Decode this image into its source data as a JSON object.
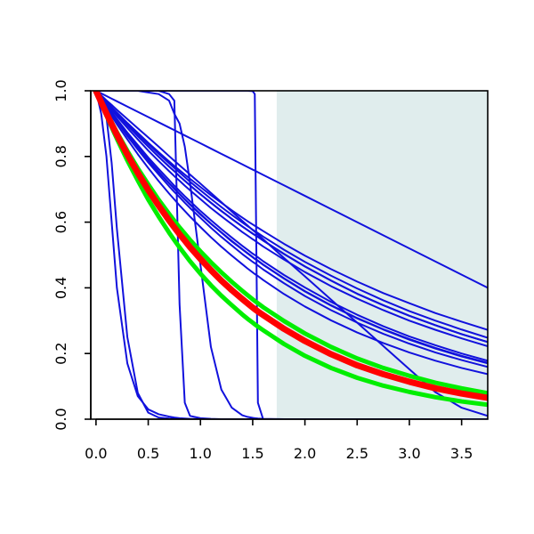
{
  "chart_data": {
    "type": "line",
    "title": "",
    "xlabel": "",
    "ylabel": "",
    "xlim": [
      -0.05,
      3.75
    ],
    "ylim": [
      0.0,
      1.0
    ],
    "x_ticks": [
      0.0,
      0.5,
      1.0,
      1.5,
      2.0,
      2.5,
      3.0,
      3.5
    ],
    "x_tick_labels": [
      "0.0",
      "0.5",
      "1.0",
      "1.5",
      "2.0",
      "2.5",
      "3.0",
      "3.5"
    ],
    "y_ticks": [
      0.0,
      0.2,
      0.4,
      0.6,
      0.8,
      1.0
    ],
    "y_tick_labels": [
      "0.0",
      "0.2",
      "0.4",
      "0.6",
      "0.8",
      "1.0"
    ],
    "grid": false,
    "legend": "none",
    "shaded_region": {
      "x_from": 1.73,
      "x_to": 3.75,
      "color": "#e0eded"
    },
    "x_samples": [
      0.0,
      0.05,
      0.1,
      0.15,
      0.2,
      0.3,
      0.4,
      0.5,
      0.6,
      0.7,
      0.75,
      0.8,
      0.85,
      0.9,
      1.0,
      1.1,
      1.2,
      1.3,
      1.4,
      1.45,
      1.5,
      1.52,
      1.55,
      1.6,
      1.8,
      2.0,
      2.25,
      2.5,
      2.75,
      3.0,
      3.25,
      3.5,
      3.75
    ],
    "colors": {
      "blue": "#1111dd",
      "red": "#ff0000",
      "green": "#00ee00",
      "band": "#e0eded"
    },
    "series": [
      {
        "color": "blue",
        "width": 2,
        "values": [
          1.0,
          0.97,
          0.92,
          0.78,
          0.58,
          0.25,
          0.08,
          0.02,
          0.005,
          0.002,
          0.001,
          0.0,
          0.0,
          0.0,
          0.0,
          0.0,
          0.0,
          0.0,
          0.0,
          0.0,
          0.0,
          0.0,
          0.0,
          0.0,
          0.0,
          0.0,
          0.0,
          0.0,
          0.0,
          0.0,
          0.0,
          0.0,
          0.0
        ]
      },
      {
        "color": "blue",
        "width": 2,
        "values": [
          1.0,
          0.93,
          0.8,
          0.6,
          0.4,
          0.17,
          0.07,
          0.03,
          0.015,
          0.008,
          0.005,
          0.003,
          0.002,
          0.001,
          0.0,
          0.0,
          0.0,
          0.0,
          0.0,
          0.0,
          0.0,
          0.0,
          0.0,
          0.0,
          0.0,
          0.0,
          0.0,
          0.0,
          0.0,
          0.0,
          0.0,
          0.0,
          0.0
        ]
      },
      {
        "color": "blue",
        "width": 2,
        "values": [
          1.0,
          1.0,
          1.0,
          1.0,
          1.0,
          1.0,
          1.0,
          1.0,
          1.0,
          0.99,
          0.97,
          0.35,
          0.05,
          0.01,
          0.003,
          0.001,
          0.0,
          0.0,
          0.0,
          0.0,
          0.0,
          0.0,
          0.0,
          0.0,
          0.0,
          0.0,
          0.0,
          0.0,
          0.0,
          0.0,
          0.0,
          0.0,
          0.0
        ]
      },
      {
        "color": "blue",
        "width": 2,
        "values": [
          1.0,
          1.0,
          1.0,
          1.0,
          1.0,
          1.0,
          1.0,
          0.995,
          0.99,
          0.97,
          0.93,
          0.9,
          0.83,
          0.72,
          0.47,
          0.22,
          0.09,
          0.035,
          0.012,
          0.007,
          0.004,
          0.003,
          0.002,
          0.001,
          0.0,
          0.0,
          0.0,
          0.0,
          0.0,
          0.0,
          0.0,
          0.0,
          0.0
        ]
      },
      {
        "color": "blue",
        "width": 2,
        "values": [
          1.0,
          1.0,
          1.0,
          1.0,
          1.0,
          1.0,
          1.0,
          1.0,
          1.0,
          1.0,
          1.0,
          1.0,
          1.0,
          1.0,
          1.0,
          1.0,
          1.0,
          1.0,
          1.0,
          1.0,
          0.999,
          0.99,
          0.05,
          0.0,
          0.0,
          0.0,
          0.0,
          0.0,
          0.0,
          0.0,
          0.0,
          0.0,
          0.0
        ]
      },
      {
        "color": "blue",
        "width": 2,
        "values": [
          1.0,
          0.992,
          0.984,
          0.976,
          0.968,
          0.952,
          0.936,
          0.92,
          0.904,
          0.888,
          0.88,
          0.872,
          0.864,
          0.856,
          0.84,
          0.824,
          0.808,
          0.792,
          0.776,
          0.768,
          0.76,
          0.757,
          0.752,
          0.744,
          0.712,
          0.68,
          0.64,
          0.6,
          0.56,
          0.52,
          0.48,
          0.44,
          0.4
        ]
      },
      {
        "color": "blue",
        "width": 2,
        "values": [
          1.0,
          0.9815,
          0.9635,
          0.946,
          0.929,
          0.895,
          0.862,
          0.83,
          0.799,
          0.769,
          0.755,
          0.74,
          0.726,
          0.712,
          0.685,
          0.659,
          0.634,
          0.61,
          0.587,
          0.576,
          0.565,
          0.561,
          0.555,
          0.544,
          0.503,
          0.465,
          0.422,
          0.382,
          0.347,
          0.315,
          0.286,
          0.259,
          0.235
        ]
      },
      {
        "color": "blue",
        "width": 2,
        "values": [
          1.0,
          0.986,
          0.971,
          0.957,
          0.942,
          0.914,
          0.886,
          0.858,
          0.83,
          0.801,
          0.787,
          0.773,
          0.759,
          0.745,
          0.717,
          0.689,
          0.661,
          0.632,
          0.604,
          0.59,
          0.576,
          0.571,
          0.562,
          0.548,
          0.491,
          0.435,
          0.364,
          0.294,
          0.223,
          0.152,
          0.082,
          0.035,
          0.01
        ]
      },
      {
        "color": "blue",
        "width": 2,
        "values": [
          1.0,
          0.9825,
          0.9655,
          0.9485,
          0.932,
          0.9,
          0.869,
          0.838,
          0.808,
          0.779,
          0.765,
          0.751,
          0.737,
          0.723,
          0.697,
          0.671,
          0.646,
          0.622,
          0.599,
          0.588,
          0.577,
          0.573,
          0.567,
          0.556,
          0.516,
          0.479,
          0.437,
          0.398,
          0.362,
          0.329,
          0.3,
          0.273,
          0.248
        ]
      },
      {
        "color": "blue",
        "width": 2,
        "values": [
          1.0,
          0.983,
          0.966,
          0.95,
          0.934,
          0.902,
          0.872,
          0.842,
          0.813,
          0.785,
          0.771,
          0.758,
          0.745,
          0.732,
          0.707,
          0.682,
          0.659,
          0.636,
          0.614,
          0.603,
          0.593,
          0.589,
          0.583,
          0.573,
          0.534,
          0.498,
          0.457,
          0.419,
          0.384,
          0.353,
          0.323,
          0.297,
          0.272
        ]
      },
      {
        "color": "blue",
        "width": 2,
        "values": [
          1.0,
          0.978,
          0.956,
          0.935,
          0.914,
          0.873,
          0.835,
          0.797,
          0.762,
          0.728,
          0.711,
          0.695,
          0.679,
          0.664,
          0.634,
          0.606,
          0.579,
          0.553,
          0.528,
          0.516,
          0.504,
          0.5,
          0.493,
          0.481,
          0.439,
          0.401,
          0.357,
          0.318,
          0.283,
          0.252,
          0.225,
          0.2,
          0.178
        ]
      },
      {
        "color": "blue",
        "width": 2,
        "values": [
          1.0,
          0.98,
          0.961,
          0.942,
          0.923,
          0.887,
          0.852,
          0.818,
          0.786,
          0.755,
          0.74,
          0.726,
          0.711,
          0.697,
          0.67,
          0.643,
          0.618,
          0.594,
          0.57,
          0.559,
          0.548,
          0.544,
          0.537,
          0.526,
          0.486,
          0.448,
          0.405,
          0.367,
          0.332,
          0.3,
          0.272,
          0.246,
          0.222
        ]
      },
      {
        "color": "blue",
        "width": 2,
        "values": [
          1.0,
          0.977,
          0.954,
          0.932,
          0.91,
          0.868,
          0.828,
          0.79,
          0.754,
          0.719,
          0.703,
          0.686,
          0.67,
          0.655,
          0.625,
          0.596,
          0.569,
          0.543,
          0.518,
          0.506,
          0.494,
          0.489,
          0.483,
          0.471,
          0.429,
          0.39,
          0.347,
          0.308,
          0.274,
          0.244,
          0.217,
          0.193,
          0.172
        ]
      },
      {
        "color": "blue",
        "width": 2,
        "values": [
          1.0,
          0.9815,
          0.9635,
          0.946,
          0.929,
          0.895,
          0.862,
          0.83,
          0.799,
          0.769,
          0.755,
          0.74,
          0.726,
          0.712,
          0.685,
          0.659,
          0.634,
          0.61,
          0.587,
          0.576,
          0.565,
          0.561,
          0.555,
          0.544,
          0.503,
          0.465,
          0.422,
          0.382,
          0.347,
          0.315,
          0.286,
          0.259,
          0.235
        ]
      },
      {
        "color": "blue",
        "width": 2,
        "values": [
          1.0,
          0.976,
          0.953,
          0.93,
          0.908,
          0.866,
          0.826,
          0.788,
          0.752,
          0.718,
          0.701,
          0.685,
          0.669,
          0.653,
          0.623,
          0.595,
          0.568,
          0.541,
          0.517,
          0.505,
          0.493,
          0.488,
          0.482,
          0.47,
          0.428,
          0.389,
          0.346,
          0.307,
          0.273,
          0.242,
          0.215,
          0.191,
          0.17
        ]
      },
      {
        "color": "blue",
        "width": 2,
        "values": [
          1.0,
          0.974,
          0.948,
          0.923,
          0.898,
          0.852,
          0.807,
          0.765,
          0.725,
          0.687,
          0.669,
          0.651,
          0.634,
          0.617,
          0.585,
          0.554,
          0.525,
          0.498,
          0.472,
          0.459,
          0.447,
          0.442,
          0.436,
          0.424,
          0.381,
          0.343,
          0.301,
          0.264,
          0.232,
          0.203,
          0.178,
          0.156,
          0.137
        ]
      },
      {
        "color": "blue",
        "width": 2,
        "values": [
          1.0,
          0.9755,
          0.952,
          0.928,
          0.906,
          0.862,
          0.821,
          0.782,
          0.745,
          0.709,
          0.692,
          0.676,
          0.659,
          0.643,
          0.613,
          0.583,
          0.555,
          0.529,
          0.503,
          0.491,
          0.479,
          0.475,
          0.468,
          0.456,
          0.414,
          0.375,
          0.332,
          0.294,
          0.26,
          0.23,
          0.203,
          0.18,
          0.159
        ]
      },
      {
        "color": "green",
        "width": 5,
        "values": [
          1.0,
          0.967,
          0.935,
          0.904,
          0.874,
          0.817,
          0.764,
          0.715,
          0.668,
          0.625,
          0.604,
          0.584,
          0.565,
          0.546,
          0.511,
          0.478,
          0.447,
          0.418,
          0.391,
          0.378,
          0.365,
          0.36,
          0.353,
          0.341,
          0.299,
          0.261,
          0.22,
          0.185,
          0.156,
          0.132,
          0.111,
          0.094,
          0.079
        ]
      },
      {
        "color": "green",
        "width": 5,
        "values": [
          1.0,
          0.962,
          0.925,
          0.889,
          0.854,
          0.788,
          0.727,
          0.669,
          0.617,
          0.568,
          0.545,
          0.523,
          0.502,
          0.481,
          0.443,
          0.408,
          0.376,
          0.347,
          0.319,
          0.306,
          0.294,
          0.289,
          0.282,
          0.271,
          0.229,
          0.193,
          0.156,
          0.126,
          0.102,
          0.083,
          0.067,
          0.054,
          0.044
        ]
      },
      {
        "color": "red",
        "width": 7,
        "values": [
          1.0,
          0.965,
          0.931,
          0.898,
          0.866,
          0.806,
          0.75,
          0.698,
          0.65,
          0.605,
          0.584,
          0.563,
          0.544,
          0.524,
          0.488,
          0.454,
          0.422,
          0.393,
          0.366,
          0.353,
          0.34,
          0.335,
          0.328,
          0.317,
          0.275,
          0.238,
          0.198,
          0.164,
          0.137,
          0.114,
          0.094,
          0.078,
          0.065
        ]
      }
    ]
  }
}
